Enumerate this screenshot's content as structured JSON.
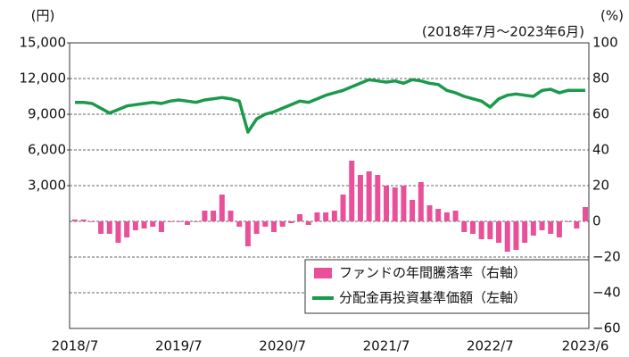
{
  "chart_data": {
    "type": "combo",
    "subtitle": "(2018年7月～2023年6月)",
    "y_label": "(円)",
    "y2_label": "(%)",
    "categories": [
      "2018/7",
      null,
      null,
      null,
      null,
      null,
      null,
      null,
      null,
      null,
      null,
      null,
      "2019/7",
      null,
      null,
      null,
      null,
      null,
      null,
      null,
      null,
      null,
      null,
      null,
      "2020/7",
      null,
      null,
      null,
      null,
      null,
      null,
      null,
      null,
      null,
      null,
      null,
      "2021/7",
      null,
      null,
      null,
      null,
      null,
      null,
      null,
      null,
      null,
      null,
      null,
      "2022/7",
      null,
      null,
      null,
      null,
      null,
      null,
      null,
      null,
      null,
      null,
      "2023/6"
    ],
    "ylim": [
      -9000,
      15000
    ],
    "yticks": [
      {
        "value": 3000,
        "label": "3,000"
      },
      {
        "value": 6000,
        "label": "6,000"
      },
      {
        "value": 9000,
        "label": "9,000"
      },
      {
        "value": 12000,
        "label": "12,000"
      },
      {
        "value": 15000,
        "label": "15,000"
      }
    ],
    "y2lim": [
      -60,
      100
    ],
    "y2ticks": [
      {
        "value": -60,
        "label": "−60"
      },
      {
        "value": -40,
        "label": "−40"
      },
      {
        "value": -20,
        "label": "−20"
      },
      0,
      20,
      40,
      60,
      80,
      100
    ],
    "grid": true,
    "legend": "lower right",
    "series": [
      {
        "name": "ファンドの年間騰落率（右軸）",
        "type": "bar",
        "axis": "y2",
        "color": "#e8509a",
        "values": [
          1,
          1,
          0,
          -7,
          -7,
          -12,
          -9,
          -5,
          -4,
          -3,
          -6,
          0,
          0,
          -2,
          0,
          6,
          6,
          15,
          6,
          -3,
          -14,
          -7,
          -3,
          -6,
          -3,
          -1,
          4,
          -2,
          5,
          5,
          6,
          15,
          34,
          26,
          28,
          26,
          20,
          19,
          20,
          12,
          22,
          9,
          7,
          5,
          6,
          -6,
          -7,
          -10,
          -10,
          -12,
          -17,
          -16,
          -12,
          -8,
          -5,
          -7,
          -9,
          0,
          -4,
          8
        ]
      },
      {
        "name": "分配金再投資基準価額（左軸）",
        "type": "line",
        "color": "#1a9a4a",
        "values": [
          10000,
          10000,
          9900,
          9500,
          9100,
          9400,
          9700,
          9800,
          9900,
          10000,
          9900,
          10100,
          10200,
          10100,
          10000,
          10200,
          10300,
          10400,
          10300,
          10100,
          7500,
          8600,
          9000,
          9200,
          9500,
          9800,
          10100,
          10000,
          10300,
          10600,
          10800,
          11000,
          11300,
          11600,
          11900,
          11800,
          11700,
          11800,
          11600,
          11900,
          11800,
          11600,
          11500,
          11000,
          10800,
          10500,
          10300,
          10100,
          9600,
          10300,
          10600,
          10700,
          10600,
          10500,
          11000,
          11100,
          10800,
          11000,
          11000,
          11000
        ]
      }
    ]
  }
}
